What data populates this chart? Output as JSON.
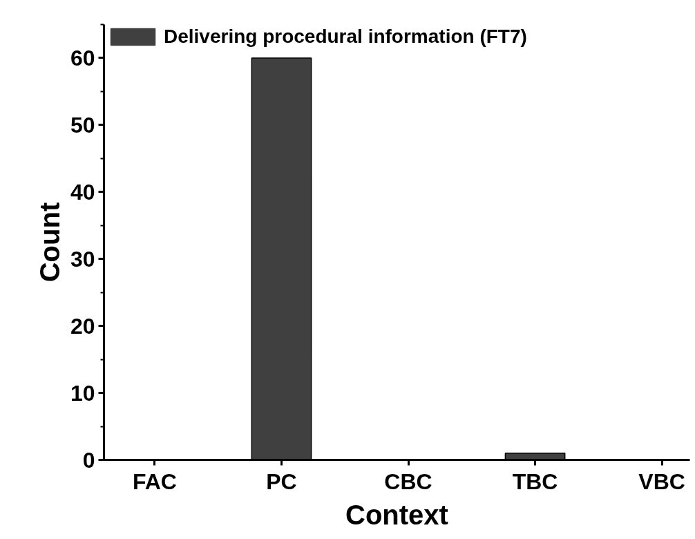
{
  "chart_data": {
    "type": "bar",
    "xlabel": "Context",
    "ylabel": "Count",
    "categories": [
      "FAC",
      "PC",
      "CBC",
      "TBC",
      "VBC"
    ],
    "series": [
      {
        "name": "Delivering procedural information (FT7)",
        "color": "#404040",
        "values": [
          0,
          60,
          0,
          1,
          0
        ]
      }
    ],
    "ylim": [
      0,
      65
    ],
    "yticks": [
      0,
      10,
      20,
      30,
      40,
      50,
      60
    ],
    "grid": false,
    "legend": "top left"
  }
}
